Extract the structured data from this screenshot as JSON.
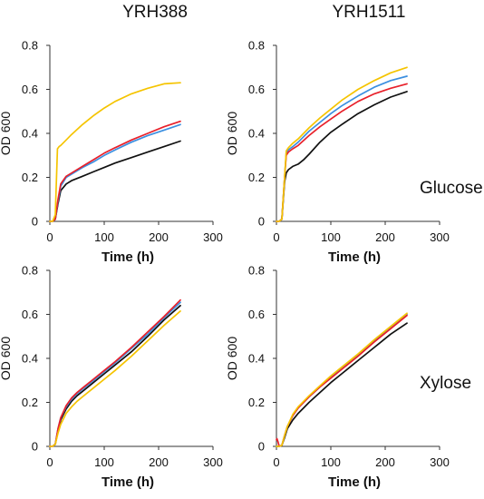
{
  "figure": {
    "columns": [
      "YRH388",
      "YRH1511"
    ],
    "rows": [
      "Glucose",
      "Xylose"
    ]
  },
  "colors": {
    "black": "#111111",
    "blue": "#3b8fe0",
    "red": "#e8202a",
    "yellow": "#f5c400"
  },
  "chart_data": [
    {
      "type": "line",
      "strain": "YRH388",
      "substrate": "Glucose",
      "xlabel": "Time (h)",
      "ylabel": "OD 600",
      "xlim": [
        0,
        300
      ],
      "ylim": [
        0,
        0.8
      ],
      "xticks": [
        "0",
        "100",
        "200",
        "300"
      ],
      "yticks": [
        "0",
        "0.2",
        "0.4",
        "0.6",
        "0.8"
      ],
      "series": [
        {
          "color": "black",
          "x": [
            0,
            5,
            10,
            15,
            20,
            30,
            40,
            60,
            80,
            100,
            120,
            150,
            180,
            210,
            240
          ],
          "y": [
            0,
            0,
            0.01,
            0.08,
            0.14,
            0.17,
            0.185,
            0.205,
            0.225,
            0.245,
            0.265,
            0.29,
            0.315,
            0.34,
            0.365
          ]
        },
        {
          "color": "blue",
          "x": [
            0,
            5,
            10,
            15,
            20,
            30,
            40,
            60,
            80,
            100,
            120,
            150,
            180,
            210,
            240
          ],
          "y": [
            0,
            0,
            0.01,
            0.09,
            0.16,
            0.2,
            0.215,
            0.245,
            0.27,
            0.3,
            0.325,
            0.36,
            0.39,
            0.415,
            0.44
          ]
        },
        {
          "color": "red",
          "x": [
            0,
            5,
            10,
            15,
            20,
            30,
            40,
            60,
            80,
            100,
            120,
            150,
            180,
            210,
            240
          ],
          "y": [
            0,
            0,
            0.01,
            0.1,
            0.17,
            0.205,
            0.22,
            0.25,
            0.28,
            0.31,
            0.335,
            0.37,
            0.4,
            0.43,
            0.455
          ]
        },
        {
          "color": "yellow",
          "x": [
            0,
            5,
            10,
            14,
            17,
            20,
            30,
            40,
            60,
            80,
            100,
            120,
            150,
            180,
            210,
            240
          ],
          "y": [
            0,
            0,
            0.03,
            0.33,
            0.34,
            0.345,
            0.37,
            0.395,
            0.44,
            0.48,
            0.515,
            0.545,
            0.58,
            0.605,
            0.625,
            0.63
          ]
        }
      ]
    },
    {
      "type": "line",
      "strain": "YRH1511",
      "substrate": "Glucose",
      "xlabel": "Time (h)",
      "ylabel": "OD 600",
      "xlim": [
        0,
        300
      ],
      "ylim": [
        0,
        0.8
      ],
      "xticks": [
        "0",
        "100",
        "200",
        "300"
      ],
      "yticks": [
        "0",
        "0.2",
        "0.4",
        "0.6",
        "0.8"
      ],
      "series": [
        {
          "color": "black",
          "x": [
            0,
            5,
            10,
            15,
            18,
            22,
            30,
            40,
            50,
            60,
            80,
            100,
            120,
            150,
            180,
            210,
            240
          ],
          "y": [
            0,
            0,
            0.01,
            0.18,
            0.22,
            0.235,
            0.25,
            0.26,
            0.28,
            0.305,
            0.36,
            0.405,
            0.44,
            0.49,
            0.53,
            0.565,
            0.59
          ]
        },
        {
          "color": "blue",
          "x": [
            0,
            5,
            10,
            15,
            18,
            22,
            30,
            40,
            60,
            80,
            100,
            120,
            150,
            180,
            210,
            240
          ],
          "y": [
            0,
            0,
            0.01,
            0.2,
            0.31,
            0.325,
            0.34,
            0.36,
            0.41,
            0.45,
            0.49,
            0.525,
            0.57,
            0.61,
            0.64,
            0.66
          ]
        },
        {
          "color": "red",
          "x": [
            0,
            5,
            10,
            15,
            18,
            22,
            30,
            40,
            60,
            80,
            100,
            120,
            150,
            180,
            210,
            240
          ],
          "y": [
            0,
            0,
            0.01,
            0.2,
            0.3,
            0.315,
            0.33,
            0.345,
            0.39,
            0.43,
            0.465,
            0.5,
            0.545,
            0.58,
            0.605,
            0.625
          ]
        },
        {
          "color": "yellow",
          "x": [
            0,
            5,
            10,
            15,
            18,
            22,
            30,
            40,
            60,
            80,
            100,
            120,
            150,
            180,
            210,
            240
          ],
          "y": [
            0,
            0,
            0.01,
            0.2,
            0.32,
            0.335,
            0.355,
            0.375,
            0.425,
            0.47,
            0.51,
            0.55,
            0.6,
            0.64,
            0.675,
            0.7
          ]
        }
      ]
    },
    {
      "type": "line",
      "strain": "YRH388",
      "substrate": "Xylose",
      "xlabel": "Time (h)",
      "ylabel": "OD 600",
      "xlim": [
        0,
        300
      ],
      "ylim": [
        0,
        0.8
      ],
      "xticks": [
        "0",
        "100",
        "200",
        "300"
      ],
      "yticks": [
        "0",
        "0.2",
        "0.4",
        "0.6",
        "0.8"
      ],
      "series": [
        {
          "color": "black",
          "x": [
            0,
            5,
            10,
            15,
            20,
            30,
            40,
            50,
            60,
            80,
            100,
            120,
            150,
            180,
            210,
            240
          ],
          "y": [
            0,
            0,
            0.01,
            0.07,
            0.12,
            0.17,
            0.205,
            0.23,
            0.25,
            0.29,
            0.33,
            0.37,
            0.43,
            0.5,
            0.575,
            0.64
          ]
        },
        {
          "color": "blue",
          "x": [
            0,
            5,
            10,
            15,
            20,
            30,
            40,
            50,
            60,
            80,
            100,
            120,
            150,
            180,
            210,
            240
          ],
          "y": [
            0,
            0,
            0.01,
            0.08,
            0.13,
            0.18,
            0.215,
            0.24,
            0.26,
            0.3,
            0.34,
            0.38,
            0.445,
            0.51,
            0.585,
            0.655
          ]
        },
        {
          "color": "red",
          "x": [
            0,
            5,
            10,
            15,
            20,
            30,
            40,
            50,
            60,
            80,
            100,
            120,
            150,
            180,
            210,
            240
          ],
          "y": [
            0,
            0,
            0.01,
            0.08,
            0.13,
            0.185,
            0.22,
            0.245,
            0.265,
            0.305,
            0.345,
            0.385,
            0.45,
            0.52,
            0.59,
            0.665
          ]
        },
        {
          "color": "yellow",
          "x": [
            0,
            5,
            10,
            15,
            20,
            30,
            40,
            50,
            60,
            80,
            100,
            120,
            150,
            180,
            210,
            240
          ],
          "y": [
            0,
            0,
            0.01,
            0.06,
            0.1,
            0.15,
            0.18,
            0.205,
            0.225,
            0.265,
            0.305,
            0.345,
            0.41,
            0.48,
            0.55,
            0.615
          ]
        }
      ]
    },
    {
      "type": "line",
      "strain": "YRH1511",
      "substrate": "Xylose",
      "xlabel": "Time (h)",
      "ylabel": "OD 600",
      "xlim": [
        0,
        300
      ],
      "ylim": [
        0,
        0.8
      ],
      "xticks": [
        "0",
        "100",
        "200",
        "300"
      ],
      "yticks": [
        "0",
        "0.2",
        "0.4",
        "0.6",
        "0.8"
      ],
      "series": [
        {
          "color": "black",
          "x": [
            0,
            5,
            10,
            15,
            20,
            30,
            40,
            50,
            60,
            80,
            100,
            120,
            150,
            180,
            210,
            240
          ],
          "y": [
            0,
            0,
            0.005,
            0.04,
            0.08,
            0.12,
            0.15,
            0.175,
            0.2,
            0.245,
            0.29,
            0.33,
            0.39,
            0.45,
            0.51,
            0.56
          ]
        },
        {
          "color": "blue",
          "x": [
            0,
            5,
            10,
            15,
            20,
            30,
            40,
            50,
            60,
            80,
            100,
            120,
            150,
            180,
            210,
            240
          ],
          "y": [
            0,
            0,
            0.005,
            0.05,
            0.09,
            0.14,
            0.175,
            0.2,
            0.225,
            0.27,
            0.315,
            0.355,
            0.415,
            0.48,
            0.54,
            0.6
          ]
        },
        {
          "color": "red",
          "x": [
            0,
            1,
            3,
            5,
            10,
            15,
            20,
            30,
            40,
            50,
            60,
            80,
            100,
            120,
            150,
            180,
            210,
            240
          ],
          "y": [
            0.03,
            0.035,
            0.02,
            0,
            0.005,
            0.05,
            0.09,
            0.14,
            0.175,
            0.2,
            0.225,
            0.27,
            0.31,
            0.35,
            0.41,
            0.475,
            0.535,
            0.595
          ]
        },
        {
          "color": "yellow",
          "x": [
            0,
            5,
            10,
            15,
            20,
            30,
            40,
            50,
            60,
            80,
            100,
            120,
            150,
            180,
            210,
            240
          ],
          "y": [
            0,
            0,
            0.005,
            0.05,
            0.09,
            0.145,
            0.18,
            0.205,
            0.23,
            0.275,
            0.32,
            0.36,
            0.42,
            0.485,
            0.545,
            0.605
          ]
        }
      ]
    }
  ]
}
